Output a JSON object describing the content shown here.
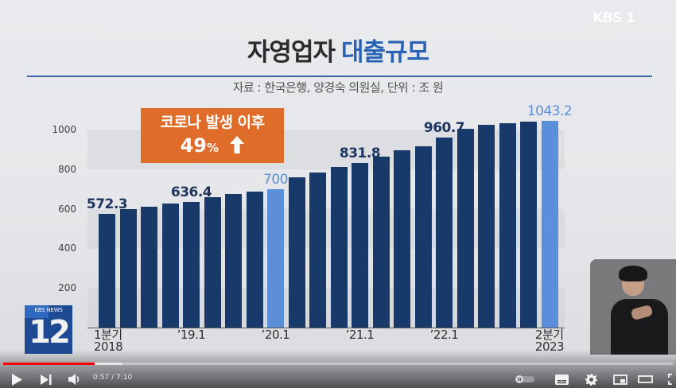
{
  "brand": {
    "channel_logo": "KBS 1"
  },
  "header": {
    "title_part1": "자영업자",
    "title_part2": "대출규모",
    "source_line": "자료 : 한국은행, 양경숙 의원실, 단위 : 조 원"
  },
  "callout": {
    "line1": "코로나 발생 이후",
    "value": "49",
    "unit": "%",
    "icon": "up-arrow-icon"
  },
  "overlay": {
    "news_logo_top": "KBS NEWS",
    "news_logo_num": "12",
    "sign_language_interpreter": "sign-language-interpreter"
  },
  "player": {
    "current_time": "0:57",
    "duration": "7:10",
    "time_display": "0:57 / 7:10",
    "progress_played_pct": 13.4,
    "progress_buffered_pct": 17.8,
    "controls": [
      "play",
      "next",
      "volume",
      "autoplay-toggle",
      "subtitles",
      "settings",
      "miniplayer",
      "theater",
      "fullscreen"
    ]
  },
  "colors": {
    "bar": "#173a6b",
    "bar_highlight": "#5b8fd9",
    "title_accent": "#2a63b5",
    "callout_bg": "#e06c2a",
    "rule": "#3b62a8",
    "progress": "#ff0000"
  },
  "chart_data": {
    "type": "bar",
    "title": "자영업자 대출규모",
    "subtitle": "자료 : 한국은행, 양경숙 의원실, 단위 : 조 원",
    "xlabel": "",
    "ylabel": "조 원",
    "ylim": [
      0,
      1000
    ],
    "yticks": [
      200,
      400,
      600,
      800,
      1000
    ],
    "grid": false,
    "legend": null,
    "categories": [
      "2018Q1",
      "2018Q2",
      "2018Q3",
      "2018Q4",
      "2019Q1",
      "2019Q2",
      "2019Q3",
      "2019Q4",
      "2020Q1",
      "2020Q2",
      "2020Q3",
      "2020Q4",
      "2021Q1",
      "2021Q2",
      "2021Q3",
      "2021Q4",
      "2022Q1",
      "2022Q2",
      "2022Q3",
      "2022Q4",
      "2023Q1",
      "2023Q2"
    ],
    "values": [
      572.3,
      598,
      611,
      627,
      636.4,
      657,
      674,
      686,
      700,
      759,
      783,
      811,
      831.8,
      863,
      896,
      915,
      960.7,
      1004,
      1024,
      1032,
      1040,
      1043.2
    ],
    "highlighted_indices": [
      8,
      21
    ],
    "labeled_values": [
      {
        "index": 0,
        "label": "572.3"
      },
      {
        "index": 4,
        "label": "636.4"
      },
      {
        "index": 8,
        "label": "700"
      },
      {
        "index": 12,
        "label": "831.8"
      },
      {
        "index": 16,
        "label": "960.7"
      },
      {
        "index": 21,
        "label": "1043.2"
      }
    ],
    "tick_labels": [
      {
        "index": 0,
        "label": "1분기\n2018"
      },
      {
        "index": 4,
        "label": "’19.1"
      },
      {
        "index": 8,
        "label": "’20.1"
      },
      {
        "index": 12,
        "label": "’21.1"
      },
      {
        "index": 16,
        "label": "’22.1"
      },
      {
        "index": 21,
        "label": "2분기\n2023"
      }
    ],
    "annotations": [
      {
        "text": "코로나 발생 이후 49% ↑",
        "position": "top-left"
      }
    ]
  }
}
